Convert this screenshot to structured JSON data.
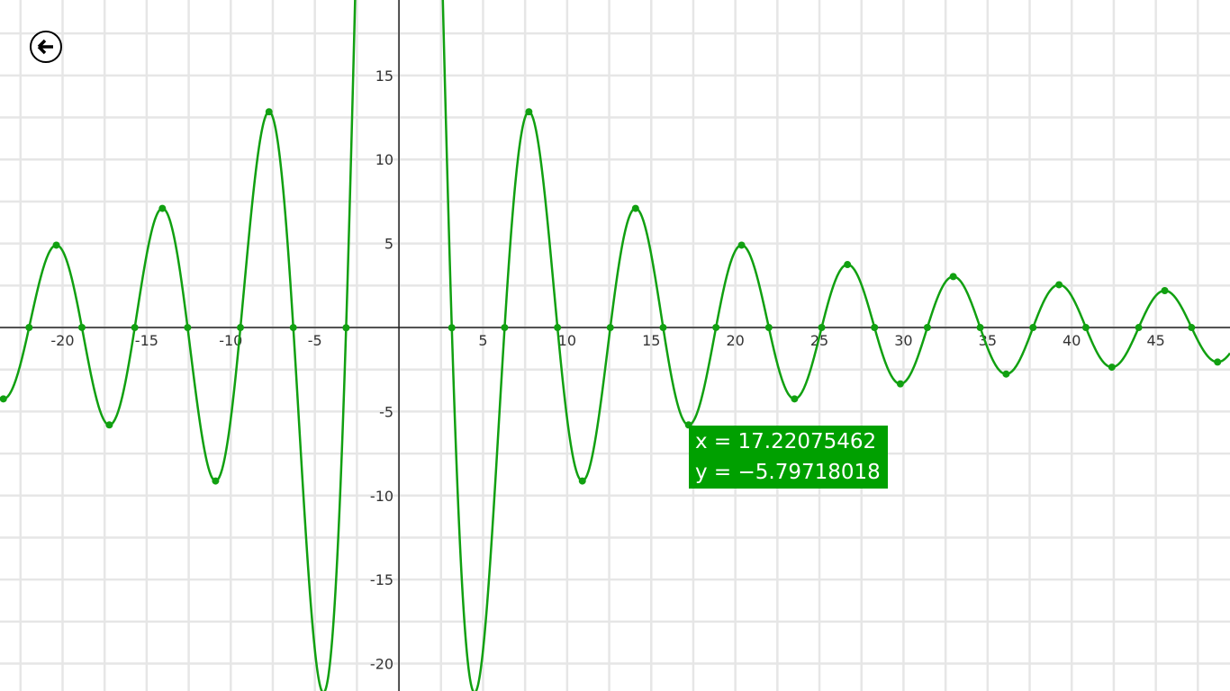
{
  "chart_data": {
    "type": "line",
    "function": "100*sin(x)/x",
    "xlim": [
      -23.72,
      49.41
    ],
    "ylim": [
      -21.63,
      19.49
    ],
    "grid": true,
    "grid_step": 2.5,
    "x_ticks": [
      "-20",
      "-15",
      "-10",
      "-5",
      "5",
      "10",
      "15",
      "20",
      "25",
      "30",
      "35",
      "40",
      "45"
    ],
    "x_tick_values": [
      -20,
      -15,
      -10,
      -5,
      5,
      10,
      15,
      20,
      25,
      30,
      35,
      40,
      45
    ],
    "y_ticks": [
      "15",
      "10",
      "5",
      "-5",
      "-10",
      "-15",
      "-20"
    ],
    "y_tick_values": [
      15,
      10,
      5,
      -5,
      -10,
      -15,
      -20
    ],
    "marked_points_x": [
      -23.519,
      -21.991,
      -20.371,
      -18.85,
      -17.221,
      -15.708,
      -14.066,
      -12.566,
      -10.904,
      -9.425,
      -7.725,
      -6.283,
      -3.142,
      3.142,
      6.283,
      7.725,
      9.425,
      10.904,
      12.566,
      14.066,
      15.708,
      17.221,
      18.85,
      20.371,
      21.991,
      23.519,
      25.133,
      26.666,
      28.274,
      29.811,
      31.416,
      32.956,
      34.558,
      36.1,
      37.699,
      39.244,
      40.841,
      42.387,
      43.982,
      45.53,
      47.124,
      48.67
    ],
    "line_color": "#11a011"
  },
  "tooltip": {
    "x_line": "x = 17.22075462",
    "y_line": "y = −5.79718018",
    "background": "#00a000"
  },
  "back_button": {
    "icon": "arrow-left-icon"
  }
}
